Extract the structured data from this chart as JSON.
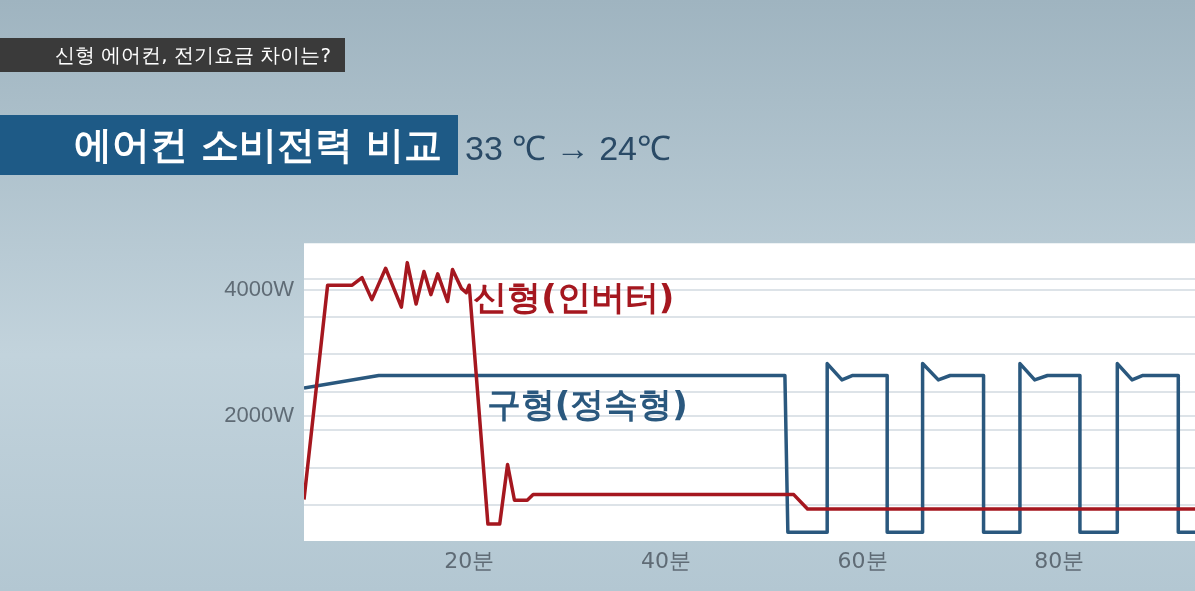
{
  "chart_data": {
    "type": "line",
    "title": "에어컨 소비전력 비교",
    "subtitle": "33 ℃ → 24℃",
    "annotations": [
      "신형 에어컨, 전기요금 차이는?"
    ],
    "xlim": [
      3.2,
      93.8
    ],
    "xticks": [
      {
        "value": 20,
        "label": "20분"
      },
      {
        "value": 40,
        "label": "40분"
      },
      {
        "value": 60,
        "label": "60분"
      },
      {
        "value": 80,
        "label": "80분"
      }
    ],
    "ylim": [
      0,
      4750
    ],
    "yticks": [
      {
        "value": 570,
        "label": null
      },
      {
        "value": 1170,
        "label": null
      },
      {
        "value": 1770,
        "label": null
      },
      {
        "value": 2000,
        "label": "2000W"
      },
      {
        "value": 2380,
        "label": null
      },
      {
        "value": 2980,
        "label": null
      },
      {
        "value": 3580,
        "label": null
      },
      {
        "value": 4000,
        "label": "4000W"
      },
      {
        "value": 4180,
        "label": null
      }
    ],
    "grid": "y",
    "legend": false,
    "marker": "none",
    "line_style": "solid",
    "series": [
      {
        "name": "신형(인버터)",
        "color": "#a5171f",
        "x": [
          3.2,
          5.6,
          8.1,
          9.1,
          10.1,
          11.5,
          13.1,
          13.7,
          14.6,
          15.4,
          16.1,
          16.8,
          17.8,
          18.3,
          19.2,
          19.7,
          20.0,
          21.9,
          23.1,
          23.9,
          24.6,
          25.9,
          26.5,
          53.0,
          54.4,
          93.8
        ],
        "values": [
          660,
          4080,
          4080,
          4200,
          3850,
          4350,
          3730,
          4440,
          3780,
          4300,
          3930,
          4260,
          3820,
          4330,
          4030,
          3960,
          4080,
          270,
          270,
          1220,
          650,
          650,
          740,
          740,
          510,
          510
        ]
      },
      {
        "name": "구형(정속형)",
        "color": "#2a587e",
        "x": [
          3.2,
          10.8,
          52.1,
          52.4,
          56.4,
          56.4,
          57.9,
          59.0,
          62.5,
          62.5,
          66.1,
          66.1,
          67.7,
          68.9,
          72.3,
          72.3,
          76.0,
          76.0,
          77.5,
          78.8,
          82.1,
          82.1,
          85.9,
          85.9,
          87.4,
          88.5,
          92.1,
          92.1,
          93.8
        ],
        "values": [
          2440,
          2640,
          2640,
          140,
          140,
          2830,
          2570,
          2640,
          2640,
          140,
          140,
          2830,
          2570,
          2640,
          2640,
          140,
          140,
          2830,
          2570,
          2640,
          2640,
          140,
          140,
          2830,
          2570,
          2640,
          2640,
          140,
          140
        ]
      }
    ]
  }
}
